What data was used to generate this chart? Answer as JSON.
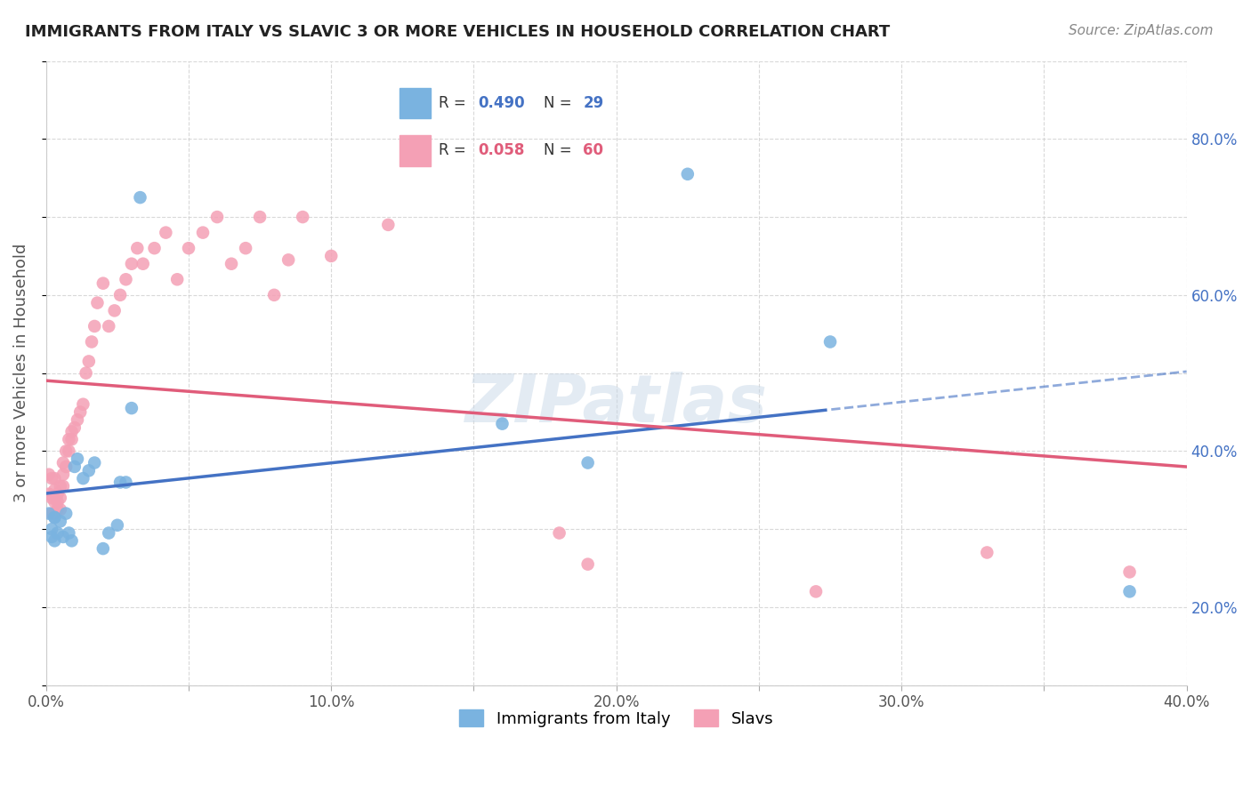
{
  "title": "IMMIGRANTS FROM ITALY VS SLAVIC 3 OR MORE VEHICLES IN HOUSEHOLD CORRELATION CHART",
  "source": "Source: ZipAtlas.com",
  "ylabel": "3 or more Vehicles in Household",
  "xlim": [
    0.0,
    0.4
  ],
  "ylim": [
    0.0,
    0.8
  ],
  "legend_italy_R": "0.490",
  "legend_italy_N": "29",
  "legend_slavs_R": "0.058",
  "legend_slavs_N": "60",
  "italy_color": "#7ab3e0",
  "slavs_color": "#f4a0b5",
  "italy_line_color": "#4472c4",
  "slavs_line_color": "#e05c7a",
  "italy_legend_label": "Immigrants from Italy",
  "slavs_legend_label": "Slavs",
  "italy_x": [
    0.001,
    0.002,
    0.002,
    0.003,
    0.003,
    0.004,
    0.005,
    0.006,
    0.007,
    0.008,
    0.009,
    0.01,
    0.011,
    0.013,
    0.015,
    0.017,
    0.02,
    0.022,
    0.025,
    0.026,
    0.028,
    0.03,
    0.033,
    0.16,
    0.19,
    0.225,
    0.275,
    0.38,
    0.003
  ],
  "italy_y": [
    0.22,
    0.2,
    0.19,
    0.215,
    0.185,
    0.195,
    0.21,
    0.19,
    0.22,
    0.195,
    0.185,
    0.28,
    0.29,
    0.265,
    0.275,
    0.285,
    0.175,
    0.195,
    0.205,
    0.26,
    0.26,
    0.355,
    0.625,
    0.335,
    0.285,
    0.655,
    0.44,
    0.12,
    0.215
  ],
  "slavs_x": [
    0.001,
    0.001,
    0.002,
    0.002,
    0.002,
    0.003,
    0.003,
    0.003,
    0.003,
    0.004,
    0.004,
    0.004,
    0.005,
    0.005,
    0.005,
    0.006,
    0.006,
    0.006,
    0.007,
    0.007,
    0.008,
    0.008,
    0.009,
    0.009,
    0.01,
    0.011,
    0.012,
    0.013,
    0.014,
    0.015,
    0.016,
    0.017,
    0.018,
    0.02,
    0.022,
    0.024,
    0.026,
    0.028,
    0.03,
    0.032,
    0.034,
    0.038,
    0.042,
    0.046,
    0.05,
    0.055,
    0.06,
    0.065,
    0.07,
    0.075,
    0.08,
    0.085,
    0.09,
    0.1,
    0.12,
    0.18,
    0.19,
    0.27,
    0.33,
    0.38
  ],
  "slavs_y": [
    0.27,
    0.245,
    0.22,
    0.24,
    0.265,
    0.22,
    0.235,
    0.25,
    0.265,
    0.225,
    0.235,
    0.245,
    0.225,
    0.24,
    0.255,
    0.255,
    0.27,
    0.285,
    0.28,
    0.3,
    0.3,
    0.315,
    0.315,
    0.325,
    0.33,
    0.34,
    0.35,
    0.36,
    0.4,
    0.415,
    0.44,
    0.46,
    0.49,
    0.515,
    0.46,
    0.48,
    0.5,
    0.52,
    0.54,
    0.56,
    0.54,
    0.56,
    0.58,
    0.52,
    0.56,
    0.58,
    0.6,
    0.54,
    0.56,
    0.6,
    0.5,
    0.545,
    0.6,
    0.55,
    0.59,
    0.195,
    0.155,
    0.12,
    0.17,
    0.145
  ]
}
